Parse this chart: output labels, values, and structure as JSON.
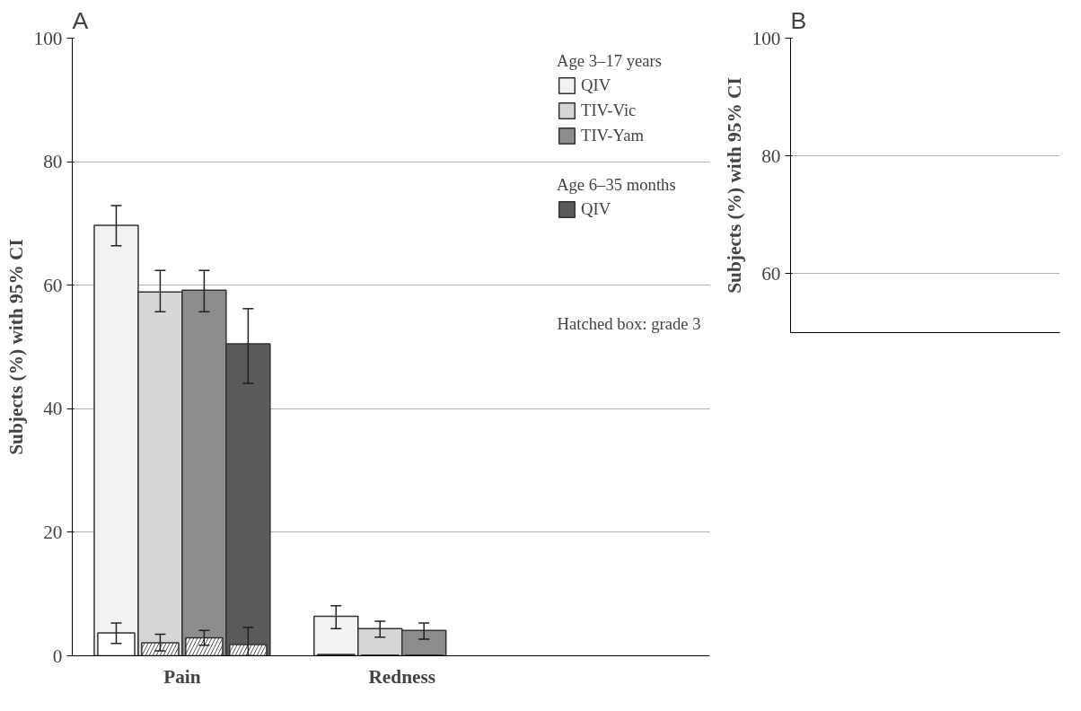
{
  "chart_data": [
    {
      "type": "bar",
      "title": "A",
      "ylabel": "Subjects (%) with 95% CI",
      "categories": [
        "Pain",
        "Redness"
      ],
      "ylim": [
        0,
        100
      ],
      "yticks": [
        0,
        20,
        40,
        60,
        80,
        100
      ],
      "grid": "y",
      "legend": "right",
      "legend_title": "Age 3–17 years",
      "annotations": [
        "Age 6–35 months",
        "Hatched box: grade 3"
      ],
      "series": [
        {
          "name": "QIV",
          "color": "#f2f2f2",
          "values": [
            69.7,
            6.4
          ],
          "errors": [
            [
              66.4,
              72.9
            ],
            [
              4.4,
              8.1
            ]
          ]
        },
        {
          "name": "TIV-Vic",
          "color": "#d6d6d6",
          "values": [
            58.9,
            4.4
          ],
          "errors": [
            [
              55.7,
              62.4
            ],
            [
              3.0,
              5.6
            ]
          ]
        },
        {
          "name": "TIV-Yam",
          "color": "#8c8c8c",
          "values": [
            59.2,
            4.1
          ],
          "errors": [
            [
              55.7,
              62.4
            ],
            [
              2.7,
              5.3
            ]
          ]
        },
        {
          "name": "QIV",
          "color": "#5a5a5a",
          "values": [
            50.5,
            null
          ],
          "errors": [
            [
              44.1,
              56.2
            ],
            null
          ]
        },
        {
          "color": "#ffffff",
          "values": [
            3.7,
            0.2
          ],
          "errors": [
            [
              2.0,
              5.3
            ],
            null
          ]
        },
        {
          "color": "#ffffff",
          "values": [
            2.1,
            0.1
          ],
          "errors": [
            [
              0.8,
              3.5
            ],
            null
          ]
        },
        {
          "color": "#ffffff",
          "values": [
            2.9,
            0.1
          ],
          "errors": [
            [
              1.7,
              4.1
            ],
            null
          ]
        },
        {
          "color": "#ffffff",
          "values": [
            1.8,
            null
          ],
          "errors": [
            [
              0.0,
              4.6
            ],
            null
          ]
        }
      ]
    },
    {
      "type": "bar",
      "title": "B",
      "ylabel": "Subjects (%) with 95% CI",
      "categories": [
        null
      ],
      "ylim": [
        50,
        100
      ],
      "yticks": [
        60,
        80,
        100
      ],
      "grid": "y"
    }
  ]
}
